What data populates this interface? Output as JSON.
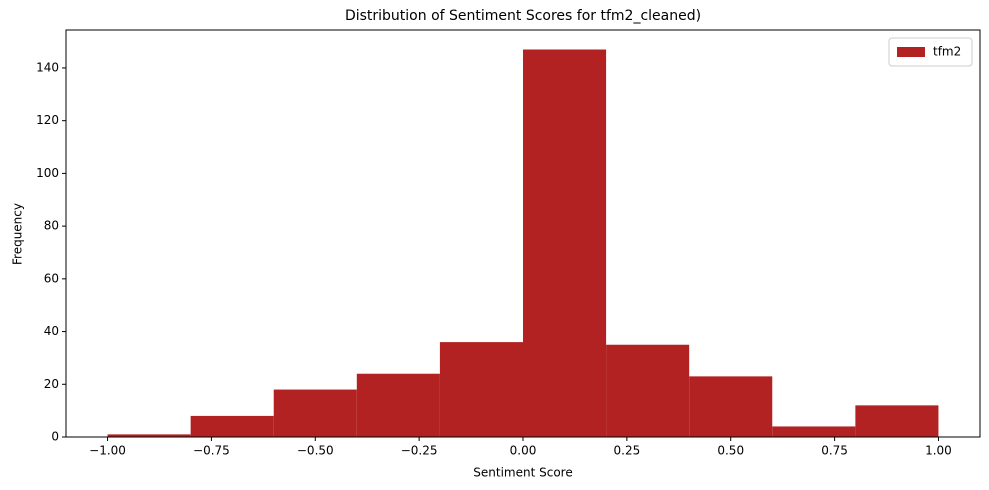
{
  "chart_data": {
    "type": "histogram",
    "title": "Distribution of Sentiment Scores for tfm2_cleaned)",
    "xlabel": "Sentiment Score",
    "ylabel": "Frequency",
    "bins": [
      -1.0,
      -0.8,
      -0.6,
      -0.4,
      -0.2,
      0.0,
      0.2,
      0.4,
      0.6,
      0.8,
      1.0
    ],
    "series": [
      {
        "name": "tfm2",
        "color": "#b22222",
        "values": [
          1,
          8,
          18,
          24,
          36,
          147,
          35,
          23,
          4,
          12
        ]
      }
    ],
    "xlim": [
      -1.1,
      1.1
    ],
    "ylim": [
      0,
      154.4
    ],
    "xticks": [
      {
        "value": -1.0,
        "label": "−1.00"
      },
      {
        "value": -0.75,
        "label": "−0.75"
      },
      {
        "value": -0.5,
        "label": "−0.50"
      },
      {
        "value": -0.25,
        "label": "−0.25"
      },
      {
        "value": 0.0,
        "label": "0.00"
      },
      {
        "value": 0.25,
        "label": "0.25"
      },
      {
        "value": 0.5,
        "label": "0.50"
      },
      {
        "value": 0.75,
        "label": "0.75"
      },
      {
        "value": 1.0,
        "label": "1.00"
      }
    ],
    "yticks": [
      0,
      20,
      40,
      60,
      80,
      100,
      120,
      140
    ],
    "legend": "upper right"
  }
}
